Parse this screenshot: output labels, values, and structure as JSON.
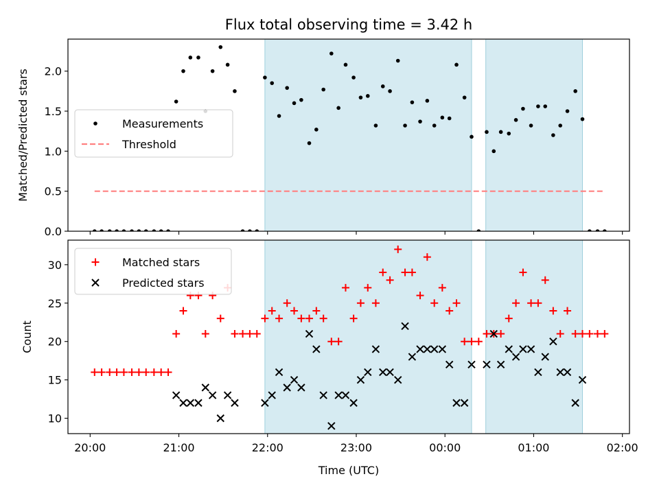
{
  "figure": {
    "title": "Flux total observing time = 3.42 h"
  },
  "chart_data": [
    {
      "type": "scatter",
      "ylabel": "Matched/Predicted stars",
      "xlabel": "",
      "ylim": [
        0,
        2.4
      ],
      "xlim": [
        -0.25,
        6.08
      ],
      "yticks": [
        0.0,
        0.5,
        1.0,
        1.5,
        2.0
      ],
      "ytick_labels": [
        "0.0",
        "0.5",
        "1.0",
        "1.5",
        "2.0"
      ],
      "grid": false,
      "legend": {
        "placement": "center-left",
        "entries": [
          "Measurements",
          "Threshold"
        ]
      },
      "series": [
        {
          "name": "Measurements",
          "marker": "dot",
          "color": "#000000",
          "x": [
            0.05,
            0.13,
            0.22,
            0.3,
            0.38,
            0.47,
            0.55,
            0.63,
            0.72,
            0.8,
            0.88,
            0.97,
            1.05,
            1.13,
            1.22,
            1.3,
            1.38,
            1.47,
            1.55,
            1.63,
            1.72,
            1.8,
            1.88,
            1.97,
            2.05,
            2.13,
            2.22,
            2.3,
            2.38,
            2.47,
            2.55,
            2.63,
            2.72,
            2.8,
            2.88,
            2.97,
            3.05,
            3.13,
            3.22,
            3.3,
            3.38,
            3.47,
            3.55,
            3.63,
            3.72,
            3.8,
            3.88,
            3.97,
            4.05,
            4.13,
            4.22,
            4.3,
            4.38,
            4.47,
            4.55,
            4.63,
            4.72,
            4.8,
            4.88,
            4.97,
            5.05,
            5.13,
            5.22,
            5.3,
            5.38,
            5.47,
            5.55,
            5.63,
            5.72,
            5.8
          ],
          "y": [
            0,
            0,
            0,
            0,
            0,
            0,
            0,
            0,
            0,
            0,
            0,
            1.62,
            2.0,
            2.17,
            2.17,
            1.5,
            2.0,
            2.3,
            2.08,
            1.75,
            0,
            0,
            0,
            1.92,
            1.85,
            1.44,
            1.79,
            1.6,
            1.64,
            1.1,
            1.27,
            1.77,
            2.22,
            1.54,
            2.08,
            1.92,
            1.67,
            1.69,
            1.32,
            1.81,
            1.75,
            2.13,
            1.32,
            1.61,
            1.37,
            1.63,
            1.32,
            1.42,
            1.41,
            2.08,
            1.67,
            1.18,
            0,
            1.24,
            1.0,
            1.24,
            1.22,
            1.39,
            1.53,
            1.32,
            1.56,
            1.56,
            1.2,
            1.32,
            1.5,
            1.75,
            1.4,
            0,
            0,
            0
          ]
        },
        {
          "name": "Threshold",
          "style": "dashed",
          "color": "#ff8080",
          "x": [
            0.05,
            5.8
          ],
          "y": [
            0.5,
            0.5
          ]
        }
      ],
      "shaded_regions": [
        [
          1.97,
          4.3
        ],
        [
          4.46,
          5.55
        ]
      ]
    },
    {
      "type": "scatter",
      "ylabel": "Count",
      "xlabel": "Time (UTC)",
      "ylim": [
        8,
        33.2
      ],
      "xlim": [
        -0.25,
        6.08
      ],
      "yticks": [
        10,
        15,
        20,
        25,
        30
      ],
      "ytick_labels": [
        "10",
        "15",
        "20",
        "25",
        "30"
      ],
      "xticks": [
        0,
        1,
        2,
        3,
        4,
        5,
        6
      ],
      "xtick_labels": [
        "20:00",
        "21:00",
        "22:00",
        "23:00",
        "00:00",
        "01:00",
        "02:00"
      ],
      "grid": false,
      "legend": {
        "placement": "top-left",
        "entries": [
          "Matched stars",
          "Predicted stars"
        ]
      },
      "series": [
        {
          "name": "Matched stars",
          "marker": "plus",
          "color": "#ff0000",
          "x": [
            0.05,
            0.13,
            0.22,
            0.3,
            0.38,
            0.47,
            0.55,
            0.63,
            0.72,
            0.8,
            0.88,
            0.97,
            1.05,
            1.13,
            1.22,
            1.3,
            1.38,
            1.47,
            1.55,
            1.63,
            1.72,
            1.8,
            1.88,
            1.97,
            2.05,
            2.13,
            2.22,
            2.3,
            2.38,
            2.47,
            2.55,
            2.63,
            2.72,
            2.8,
            2.88,
            2.97,
            3.05,
            3.13,
            3.22,
            3.3,
            3.38,
            3.47,
            3.55,
            3.63,
            3.72,
            3.8,
            3.88,
            3.97,
            4.05,
            4.13,
            4.22,
            4.3,
            4.38,
            4.47,
            4.55,
            4.63,
            4.72,
            4.8,
            4.88,
            4.97,
            5.05,
            5.13,
            5.22,
            5.3,
            5.38,
            5.47,
            5.55,
            5.63,
            5.72,
            5.8
          ],
          "y": [
            16,
            16,
            16,
            16,
            16,
            16,
            16,
            16,
            16,
            16,
            16,
            21,
            24,
            26,
            26,
            21,
            26,
            23,
            27,
            21,
            21,
            21,
            21,
            23,
            24,
            23,
            25,
            24,
            23,
            23,
            24,
            23,
            20,
            20,
            27,
            23,
            25,
            27,
            25,
            29,
            28,
            32,
            29,
            29,
            26,
            31,
            25,
            27,
            24,
            25,
            20,
            20,
            20,
            21,
            21,
            21,
            23,
            25,
            29,
            25,
            25,
            28,
            24,
            21,
            24,
            21,
            21,
            21,
            21,
            21
          ]
        },
        {
          "name": "Predicted stars",
          "marker": "x",
          "color": "#000000",
          "x": [
            0.97,
            1.05,
            1.13,
            1.22,
            1.3,
            1.38,
            1.47,
            1.55,
            1.63,
            1.97,
            2.05,
            2.13,
            2.22,
            2.3,
            2.38,
            2.47,
            2.55,
            2.63,
            2.72,
            2.8,
            2.88,
            2.97,
            3.05,
            3.13,
            3.22,
            3.3,
            3.38,
            3.47,
            3.55,
            3.63,
            3.72,
            3.8,
            3.88,
            3.97,
            4.05,
            4.13,
            4.22,
            4.3,
            4.47,
            4.55,
            4.63,
            4.72,
            4.8,
            4.88,
            4.97,
            5.05,
            5.13,
            5.22,
            5.3,
            5.38,
            5.47,
            5.55
          ],
          "y": [
            13,
            12,
            12,
            12,
            14,
            13,
            10,
            13,
            12,
            12,
            13,
            16,
            14,
            15,
            14,
            21,
            19,
            13,
            9,
            13,
            13,
            12,
            15,
            16,
            19,
            16,
            16,
            15,
            22,
            18,
            19,
            19,
            19,
            19,
            17,
            12,
            12,
            17,
            17,
            21,
            17,
            19,
            18,
            19,
            19,
            16,
            18,
            20,
            16,
            16,
            12,
            15
          ]
        }
      ],
      "shaded_regions": [
        [
          1.97,
          4.3
        ],
        [
          4.46,
          5.55
        ]
      ]
    }
  ]
}
